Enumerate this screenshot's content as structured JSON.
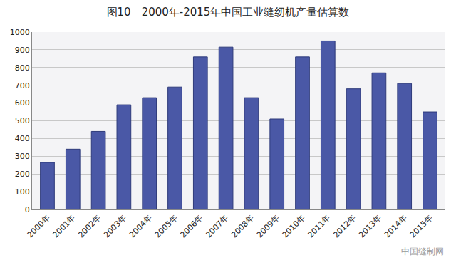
{
  "chart_data": {
    "type": "bar",
    "title": "图10　2000年-2015年中国工业缝纫机产量估算数",
    "categories": [
      "2000年",
      "2001年",
      "2002年",
      "2003年",
      "2004年",
      "2005年",
      "2006年",
      "2007年",
      "2008年",
      "2009年",
      "2010年",
      "2011年",
      "2012年",
      "2013年",
      "2014年",
      "2015年"
    ],
    "values": [
      265,
      340,
      440,
      590,
      630,
      690,
      860,
      915,
      630,
      510,
      860,
      950,
      680,
      770,
      710,
      550
    ],
    "color": "#4a58a6",
    "ylim": [
      0,
      1000
    ],
    "yticks": [
      0,
      100,
      200,
      300,
      400,
      500,
      600,
      700,
      800,
      900,
      1000
    ],
    "grid": true,
    "annotations": [
      "中国缝制网"
    ]
  }
}
